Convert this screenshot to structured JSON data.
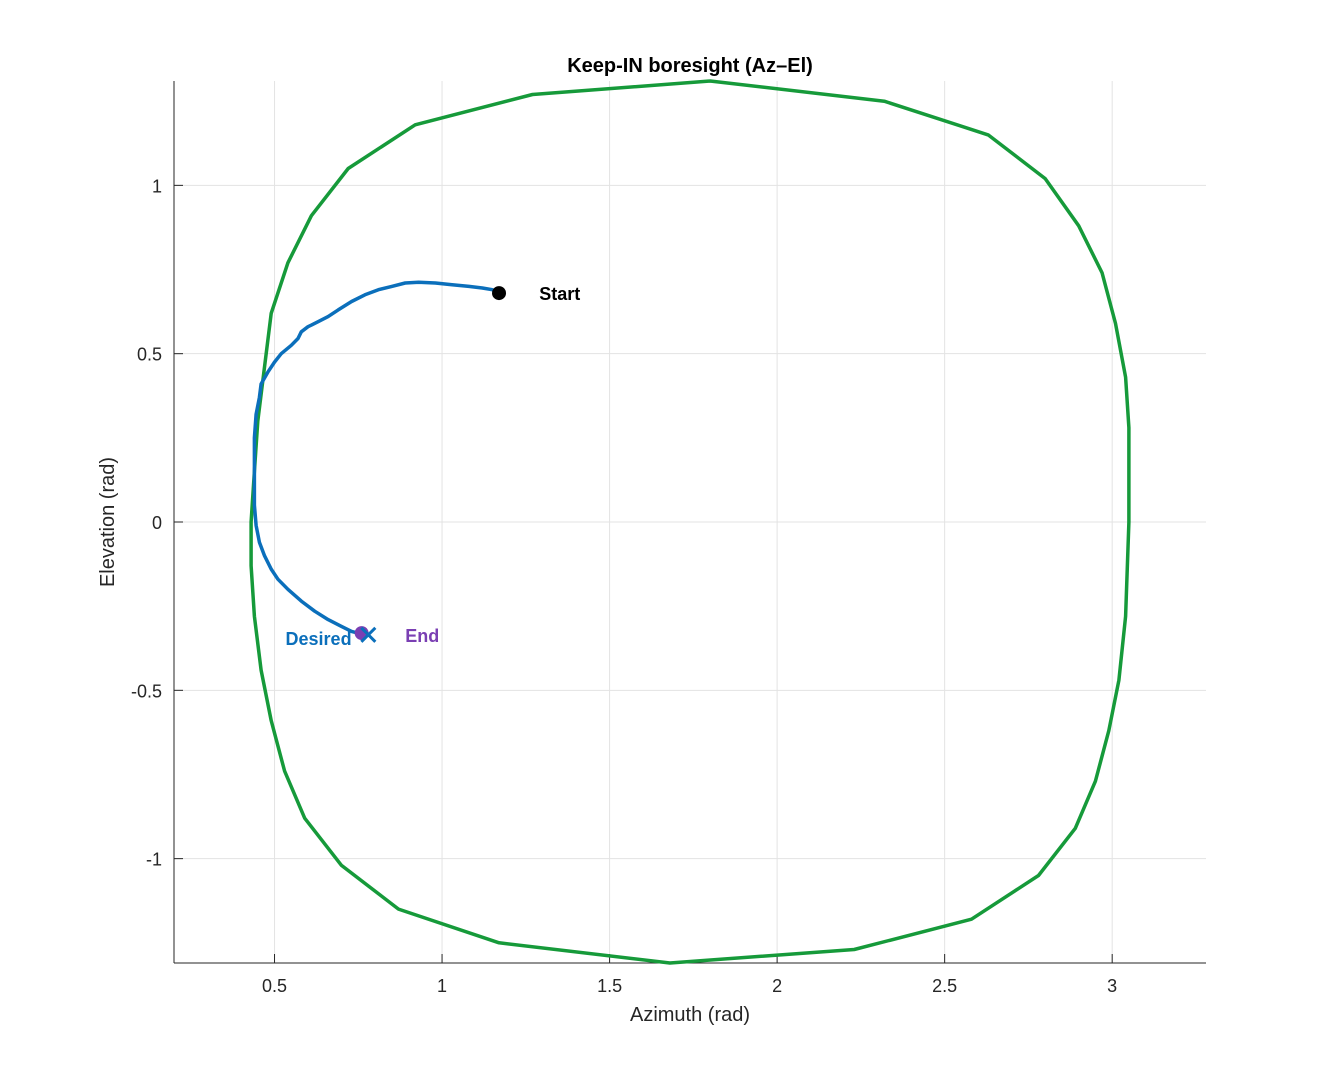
{
  "chart_data": {
    "type": "line",
    "title": "Keep-IN boresight (Az–El)",
    "xlabel": "Azimuth (rad)",
    "ylabel": "Elevation (rad)",
    "xlim": [
      0.2,
      3.28
    ],
    "ylim": [
      -1.31,
      1.31
    ],
    "grid": true,
    "x_ticks": [
      {
        "value": 0.5,
        "label": "0.5"
      },
      {
        "value": 1,
        "label": "1"
      },
      {
        "value": 1.5,
        "label": "1.5"
      },
      {
        "value": 2,
        "label": "2"
      },
      {
        "value": 2.5,
        "label": "2.5"
      },
      {
        "value": 3,
        "label": "3"
      }
    ],
    "y_ticks": [
      {
        "value": 1,
        "label": "1"
      },
      {
        "value": 0.5,
        "label": "0.5"
      },
      {
        "value": 0,
        "label": "0"
      },
      {
        "value": -0.5,
        "label": "-0.5"
      },
      {
        "value": -1,
        "label": "-1"
      }
    ],
    "series": [
      {
        "color": "#169a3a",
        "x": [
          1.8,
          2.32,
          2.63,
          2.8,
          2.9,
          2.97,
          3.01,
          3.04,
          3.05,
          3.05,
          3.04,
          3.02,
          2.99,
          2.95,
          2.89,
          2.78,
          2.58,
          2.23,
          1.68,
          1.17,
          0.87,
          0.7,
          0.59,
          0.53,
          0.49,
          0.46,
          0.44,
          0.43,
          0.43,
          0.44,
          0.45,
          0.47,
          0.49,
          0.54,
          0.61,
          0.72,
          0.92,
          1.27,
          1.8
        ],
        "y": [
          1.31,
          1.25,
          1.15,
          1.02,
          0.88,
          0.74,
          0.59,
          0.43,
          0.28,
          0.0,
          -0.28,
          -0.47,
          -0.62,
          -0.77,
          -0.91,
          -1.05,
          -1.18,
          -1.27,
          -1.31,
          -1.25,
          -1.15,
          -1.02,
          -0.88,
          -0.74,
          -0.59,
          -0.44,
          -0.28,
          -0.13,
          0.0,
          0.15,
          0.3,
          0.46,
          0.62,
          0.77,
          0.91,
          1.05,
          1.18,
          1.27,
          1.31
        ]
      },
      {
        "color": "#0b6fbb",
        "x": [
          1.17,
          1.15,
          1.12,
          1.08,
          1.03,
          0.98,
          0.93,
          0.89,
          0.85,
          0.81,
          0.77,
          0.73,
          0.69,
          0.66,
          0.63,
          0.61,
          0.6,
          0.58,
          0.57,
          0.55,
          0.52,
          0.5,
          0.48,
          0.46,
          0.455,
          0.445,
          0.44,
          0.44,
          0.44,
          0.445,
          0.455,
          0.47,
          0.49,
          0.51,
          0.54,
          0.58,
          0.62,
          0.66,
          0.7,
          0.73,
          0.76,
          0.78
        ],
        "y": [
          0.68,
          0.69,
          0.695,
          0.7,
          0.705,
          0.71,
          0.712,
          0.71,
          0.7,
          0.69,
          0.675,
          0.655,
          0.63,
          0.61,
          0.595,
          0.585,
          0.58,
          0.565,
          0.545,
          0.525,
          0.5,
          0.475,
          0.445,
          0.41,
          0.37,
          0.32,
          0.25,
          0.15,
          0.05,
          -0.01,
          -0.06,
          -0.1,
          -0.14,
          -0.17,
          -0.2,
          -0.235,
          -0.265,
          -0.29,
          -0.31,
          -0.325,
          -0.333,
          -0.335
        ]
      }
    ],
    "markers": [
      {
        "name": "Start",
        "x": 1.17,
        "y": 0.68,
        "shape": "dot",
        "color": "#000000"
      },
      {
        "name": "End",
        "x": 0.76,
        "y": -0.33,
        "shape": "dot",
        "color": "#7a3fb3"
      },
      {
        "name": "Desired",
        "x": 0.78,
        "y": -0.335,
        "shape": "x",
        "color": "#0b6fbb"
      }
    ],
    "annotations": [
      {
        "text": "Start",
        "x": 1.29,
        "y": 0.68,
        "color": "#000000",
        "anchor": "start"
      },
      {
        "text": "Desired",
        "x": 0.73,
        "y": -0.345,
        "color": "#0b6fbb",
        "anchor": "end"
      },
      {
        "text": "End",
        "x": 0.89,
        "y": -0.335,
        "color": "#7a3fb3",
        "anchor": "start"
      }
    ]
  }
}
